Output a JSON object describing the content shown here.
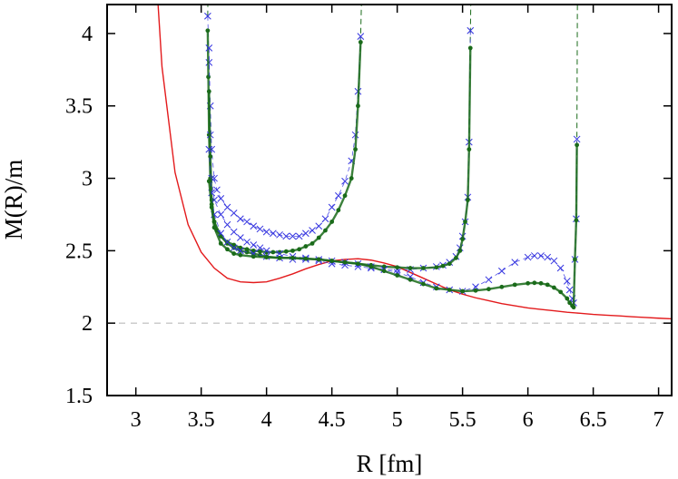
{
  "chart_data": {
    "type": "scatter",
    "title": "",
    "xlabel": "R [fm]",
    "ylabel": "M(R)/m",
    "xlim": [
      2.78,
      7.1
    ],
    "ylim": [
      1.5,
      4.2
    ],
    "xticks": [
      3,
      3.5,
      4,
      4.5,
      5,
      5.5,
      6,
      6.5,
      7
    ],
    "yticks": [
      1.5,
      2,
      2.5,
      3,
      3.5,
      4
    ],
    "xtick_labels": [
      "3",
      "3.5",
      "4",
      "4.5",
      "5",
      "5.5",
      "6",
      "6.5",
      "7"
    ],
    "ytick_labels": [
      "1.5",
      "2",
      "2.5",
      "3",
      "3.5",
      "4"
    ],
    "grid": false,
    "reference_line": {
      "y": 2,
      "style": "dashed",
      "color": "#bbbbbb"
    },
    "colors": {
      "red": "#e31a1c",
      "blue": "#3535e0",
      "green": "#1a6b1a"
    },
    "series": [
      {
        "style": "line",
        "color": "#e31a1c",
        "x": [
          3.17,
          3.2,
          3.3,
          3.4,
          3.5,
          3.6,
          3.7,
          3.8,
          3.9,
          4.0,
          4.1,
          4.2,
          4.3,
          4.4,
          4.5,
          4.6,
          4.7,
          4.8,
          4.9,
          5.0,
          5.1,
          5.2,
          5.3,
          5.4,
          5.5,
          5.6,
          5.7,
          5.8,
          5.9,
          6.0,
          6.1,
          6.2,
          6.3,
          6.4,
          6.5,
          6.6,
          6.7,
          6.8,
          6.9,
          7.0,
          7.1
        ],
        "y": [
          4.2,
          3.77,
          3.04,
          2.68,
          2.49,
          2.38,
          2.31,
          2.285,
          2.28,
          2.285,
          2.31,
          2.34,
          2.375,
          2.405,
          2.43,
          2.44,
          2.445,
          2.435,
          2.415,
          2.39,
          2.35,
          2.31,
          2.27,
          2.23,
          2.2,
          2.175,
          2.155,
          2.135,
          2.12,
          2.105,
          2.095,
          2.085,
          2.075,
          2.068,
          2.06,
          2.055,
          2.05,
          2.044,
          2.039,
          2.034,
          2.03
        ]
      },
      {
        "style": "points",
        "marker": "cross",
        "color": "#3535e0",
        "x": [
          3.55,
          3.56,
          3.57,
          3.58,
          3.6,
          3.62,
          3.65,
          3.7,
          3.75,
          3.8,
          3.85,
          3.9,
          3.95,
          4.0,
          4.05,
          4.1,
          4.15,
          4.2,
          4.25,
          4.3,
          4.35,
          4.4,
          4.45,
          4.5,
          4.55,
          4.6,
          4.65,
          4.68,
          4.7,
          4.72
        ],
        "y": [
          4.12,
          3.8,
          3.5,
          3.2,
          3.0,
          2.92,
          2.86,
          2.8,
          2.76,
          2.72,
          2.7,
          2.67,
          2.65,
          2.63,
          2.62,
          2.61,
          2.6,
          2.6,
          2.6,
          2.62,
          2.64,
          2.67,
          2.72,
          2.8,
          2.88,
          2.98,
          3.12,
          3.3,
          3.6,
          3.98
        ]
      },
      {
        "style": "points",
        "marker": "dot",
        "color": "#1a6b1a",
        "x": [
          3.55,
          3.555,
          3.56,
          3.57,
          3.58,
          3.6,
          3.62,
          3.65,
          3.7,
          3.75,
          3.8,
          3.85,
          3.9,
          3.95,
          4.0,
          4.05,
          4.1,
          4.15,
          4.2,
          4.25,
          4.3,
          4.35,
          4.4,
          4.45,
          4.5,
          4.55,
          4.6,
          4.65,
          4.68,
          4.7,
          4.72
        ],
        "y": [
          4.02,
          3.7,
          3.3,
          3.0,
          2.82,
          2.7,
          2.64,
          2.6,
          2.56,
          2.54,
          2.52,
          2.51,
          2.5,
          2.495,
          2.49,
          2.49,
          2.49,
          2.495,
          2.5,
          2.51,
          2.53,
          2.55,
          2.59,
          2.64,
          2.7,
          2.78,
          2.88,
          3.0,
          3.2,
          3.5,
          3.94
        ]
      },
      {
        "style": "points",
        "marker": "cross",
        "color": "#3535e0",
        "x": [
          3.56,
          3.57,
          3.58,
          3.6,
          3.65,
          3.7,
          3.75,
          3.8,
          3.85,
          3.9,
          3.95,
          4.0,
          4.1,
          4.2,
          4.3,
          4.4,
          4.5,
          4.6,
          4.7,
          4.8,
          4.9,
          5.0,
          5.1,
          5.2,
          5.3,
          5.35,
          5.4,
          5.45,
          5.48,
          5.5,
          5.52,
          5.54,
          5.55,
          5.56
        ],
        "y": [
          3.9,
          3.3,
          3.0,
          2.85,
          2.75,
          2.68,
          2.63,
          2.59,
          2.56,
          2.54,
          2.52,
          2.5,
          2.48,
          2.46,
          2.45,
          2.43,
          2.41,
          2.4,
          2.39,
          2.38,
          2.37,
          2.37,
          2.37,
          2.38,
          2.39,
          2.4,
          2.42,
          2.46,
          2.52,
          2.6,
          2.7,
          2.87,
          3.25,
          4.02
        ]
      },
      {
        "style": "points",
        "marker": "dot",
        "color": "#1a6b1a",
        "x": [
          3.56,
          3.57,
          3.58,
          3.6,
          3.65,
          3.7,
          3.75,
          3.8,
          3.85,
          3.9,
          3.95,
          4.0,
          4.1,
          4.2,
          4.3,
          4.4,
          4.5,
          4.6,
          4.7,
          4.8,
          4.9,
          5.0,
          5.1,
          5.2,
          5.3,
          5.35,
          5.4,
          5.45,
          5.48,
          5.5,
          5.52,
          5.54,
          5.55,
          5.56
        ],
        "y": [
          3.6,
          3.15,
          2.85,
          2.7,
          2.6,
          2.55,
          2.52,
          2.5,
          2.49,
          2.48,
          2.47,
          2.46,
          2.45,
          2.45,
          2.445,
          2.44,
          2.43,
          2.42,
          2.41,
          2.4,
          2.39,
          2.385,
          2.38,
          2.38,
          2.385,
          2.395,
          2.41,
          2.45,
          2.5,
          2.58,
          2.7,
          2.85,
          3.2,
          3.9
        ]
      },
      {
        "style": "points",
        "marker": "cross",
        "color": "#3535e0",
        "x": [
          3.56,
          3.58,
          3.6,
          3.65,
          3.7,
          3.75,
          3.8,
          3.9,
          4.0,
          4.1,
          4.2,
          4.3,
          4.4,
          4.5,
          4.6,
          4.7,
          4.8,
          4.9,
          5.0,
          5.1,
          5.2,
          5.3,
          5.4,
          5.5,
          5.6,
          5.7,
          5.8,
          5.9,
          6.0,
          6.05,
          6.1,
          6.15,
          6.2,
          6.25,
          6.3,
          6.32,
          6.34,
          6.35,
          6.36,
          6.37,
          6.375
        ],
        "y": [
          3.2,
          2.9,
          2.75,
          2.62,
          2.56,
          2.52,
          2.5,
          2.48,
          2.46,
          2.45,
          2.44,
          2.44,
          2.44,
          2.43,
          2.42,
          2.41,
          2.39,
          2.37,
          2.35,
          2.32,
          2.28,
          2.25,
          2.23,
          2.22,
          2.25,
          2.3,
          2.36,
          2.42,
          2.455,
          2.465,
          2.465,
          2.455,
          2.43,
          2.38,
          2.29,
          2.23,
          2.17,
          2.14,
          2.44,
          2.72,
          3.27
        ]
      },
      {
        "style": "points",
        "marker": "dot",
        "color": "#1a6b1a",
        "x": [
          3.56,
          3.58,
          3.6,
          3.65,
          3.7,
          3.75,
          3.8,
          3.9,
          4.0,
          4.1,
          4.2,
          4.3,
          4.4,
          4.5,
          4.6,
          4.7,
          4.8,
          4.9,
          5.0,
          5.1,
          5.2,
          5.3,
          5.4,
          5.5,
          5.6,
          5.7,
          5.8,
          5.9,
          6.0,
          6.05,
          6.1,
          6.15,
          6.2,
          6.25,
          6.3,
          6.32,
          6.34,
          6.35,
          6.36,
          6.37,
          6.375
        ],
        "y": [
          2.98,
          2.8,
          2.66,
          2.55,
          2.51,
          2.48,
          2.47,
          2.46,
          2.455,
          2.45,
          2.45,
          2.445,
          2.44,
          2.43,
          2.42,
          2.41,
          2.39,
          2.36,
          2.33,
          2.3,
          2.27,
          2.24,
          2.23,
          2.22,
          2.225,
          2.235,
          2.25,
          2.265,
          2.275,
          2.278,
          2.275,
          2.265,
          2.245,
          2.215,
          2.17,
          2.14,
          2.12,
          2.11,
          2.44,
          2.71,
          3.23
        ]
      }
    ],
    "connectors": [
      {
        "color": "#1a6b1a",
        "style": "dashed",
        "x": [
          4.7,
          4.72,
          4.74,
          4.74
        ],
        "y": [
          3.5,
          3.98,
          4.7,
          4.2
        ]
      },
      {
        "color": "#1a6b1a",
        "style": "dashed",
        "x": [
          5.55,
          5.56,
          5.57,
          5.57
        ],
        "y": [
          3.25,
          4.02,
          4.6,
          4.2
        ]
      },
      {
        "color": "#1a6b1a",
        "style": "dashed",
        "x": [
          6.37,
          6.375,
          6.38,
          6.38
        ],
        "y": [
          2.72,
          3.27,
          4.5,
          4.2
        ]
      },
      {
        "color": "#1a6b1a",
        "style": "dashed",
        "x": [
          3.55,
          3.552,
          3.554
        ],
        "y": [
          4.12,
          4.3,
          4.5
        ]
      }
    ]
  }
}
